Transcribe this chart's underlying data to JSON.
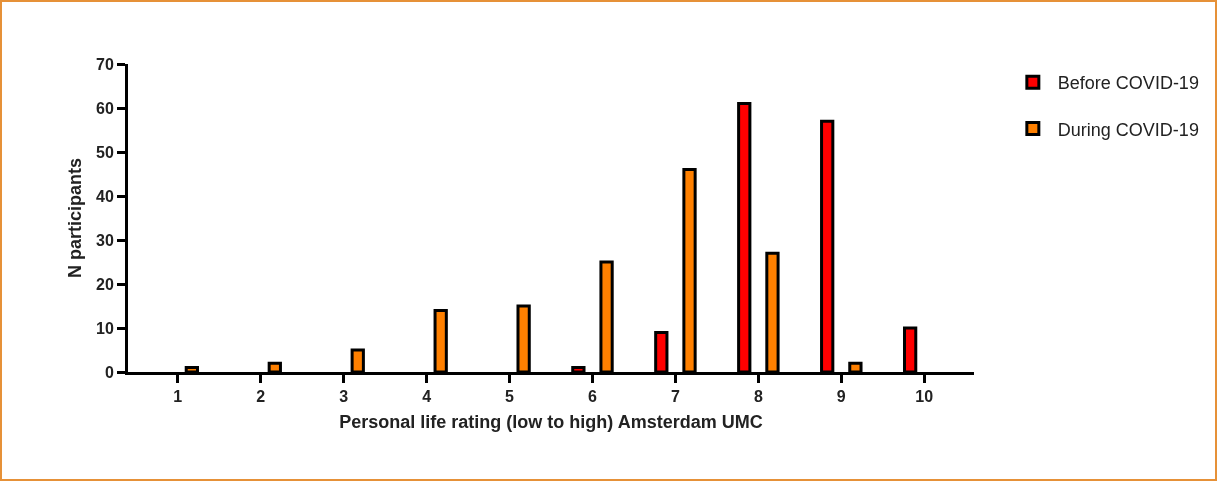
{
  "chart_data": {
    "type": "bar",
    "xlabel": "Personal life rating (low to high) Amsterdam UMC",
    "ylabel": "N participants",
    "categories": [
      "1",
      "2",
      "3",
      "4",
      "5",
      "6",
      "7",
      "8",
      "9",
      "10"
    ],
    "series": [
      {
        "name": "Before COVID-19",
        "color": "#ff0000",
        "values": [
          null,
          null,
          null,
          null,
          null,
          1,
          9,
          61,
          57,
          10
        ]
      },
      {
        "name": "During COVID-19",
        "color": "#ff8000",
        "values": [
          1,
          2,
          5,
          14,
          15,
          25,
          46,
          27,
          2,
          null
        ]
      }
    ],
    "ylim": [
      0,
      70
    ],
    "yticks": [
      0,
      10,
      20,
      30,
      40,
      50,
      60,
      70
    ],
    "grid": false,
    "legend": "top right"
  }
}
